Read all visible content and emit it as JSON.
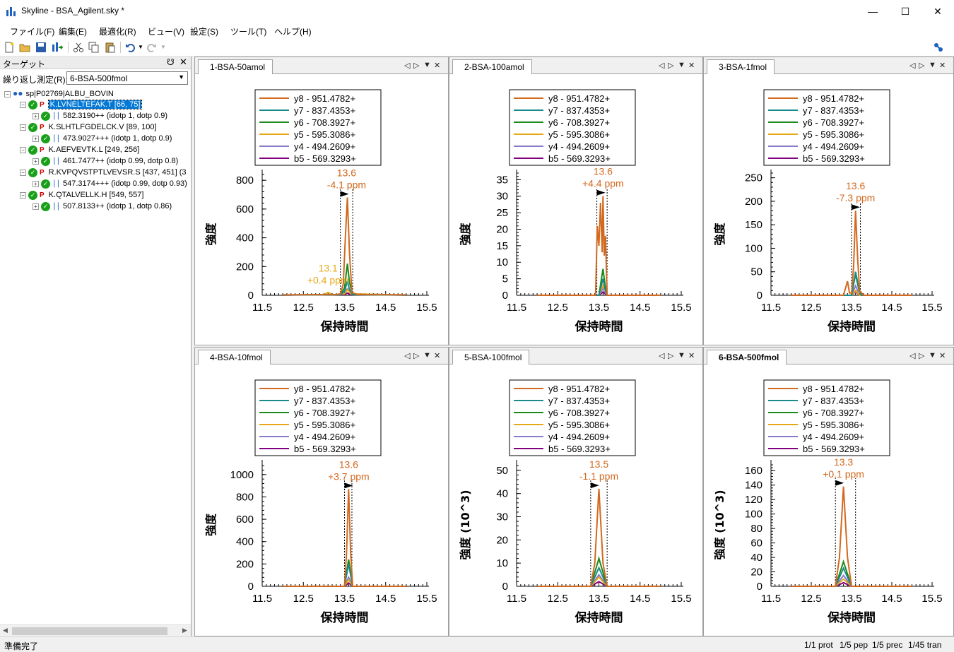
{
  "window": {
    "title": "Skyline - BSA_Agilent.sky *"
  },
  "menu": [
    "ファイル(F)",
    "編集(E)",
    "最適化(R)",
    "ビュー(V)",
    "設定(S)",
    "ツール(T)",
    "ヘルプ(H)"
  ],
  "toolbar_icons": [
    "new-file-icon",
    "open-folder-icon",
    "save-icon",
    "import-icon",
    "cut-icon",
    "copy-icon",
    "paste-icon",
    "undo-icon",
    "redo-icon"
  ],
  "targets": {
    "title": "ターゲット",
    "replicate_label": "繰り返し測定(R):",
    "replicate_value": "6-BSA-500fmol",
    "protein": "sp|P02769|ALBU_BOVIN",
    "peptides": [
      {
        "label": "K.LVNELTEFAK.T [66, 75]",
        "precursor": "582.3190++ (idotp 1, dotp 0.9)",
        "selected": true
      },
      {
        "label": "K.SLHTLFGDELCK.V [89, 100]",
        "precursor": "473.9027+++ (idotp 1, dotp 0.9)",
        "selected": false
      },
      {
        "label": "K.AEFVEVTK.L [249, 256]",
        "precursor": "461.7477++ (idotp 0.99, dotp 0.8)",
        "selected": false
      },
      {
        "label": "R.KVPQVSTPTLVEVSR.S [437, 451] (3",
        "precursor": "547.3174+++ (idotp 0.99, dotp 0.93)",
        "selected": false
      },
      {
        "label": "K.QTALVELLK.H [549, 557]",
        "precursor": "507.8133++ (idotp 1, dotp 0.86)",
        "selected": false
      }
    ]
  },
  "legend": [
    {
      "label": "y8 - 951.4782+",
      "color": "#d2691e"
    },
    {
      "label": "y7 - 837.4353+",
      "color": "#1a8a8a"
    },
    {
      "label": "y6 - 708.3927+",
      "color": "#1a8a1a"
    },
    {
      "label": "y5 - 595.3086+",
      "color": "#e6a817"
    },
    {
      "label": "y4 - 494.2609+",
      "color": "#8a7acc"
    },
    {
      "label": "b5 - 569.3293+",
      "color": "#800080"
    }
  ],
  "chart_data": [
    {
      "type": "line",
      "tab": "1-BSA-50amol",
      "active": false,
      "xlabel": "保持時間",
      "ylabel": "強度",
      "xlim": [
        11.5,
        15.5
      ],
      "ylim": [
        0,
        850
      ],
      "xticks": [
        11.5,
        12.5,
        13.5,
        14.5,
        15.5
      ],
      "yticks": [
        0,
        200,
        400,
        600,
        800
      ],
      "peak": {
        "rt": 13.55,
        "apex": 680,
        "boundary": [
          13.4,
          13.7
        ],
        "label": "13.6",
        "ppm": "-4.1 ppm"
      },
      "extra_label": {
        "rt": 13.1,
        "y": 165,
        "label": "13.1",
        "ppm": "+0.4 ppm"
      },
      "series": [
        {
          "name": "y8 - 951.4782+",
          "x": [
            12.0,
            13.3,
            13.4,
            13.47,
            13.52,
            13.57,
            13.62,
            13.68,
            13.8,
            15.0
          ],
          "y": [
            3,
            5,
            10,
            80,
            400,
            680,
            300,
            20,
            5,
            3
          ]
        },
        {
          "name": "y7 - 837.4353+",
          "x": [
            12.0,
            13.4,
            13.5,
            13.57,
            13.62,
            13.7,
            15.0
          ],
          "y": [
            2,
            5,
            25,
            100,
            40,
            5,
            2
          ]
        },
        {
          "name": "y6 - 708.3927+",
          "x": [
            12.0,
            13.4,
            13.5,
            13.57,
            13.62,
            13.7,
            15.0
          ],
          "y": [
            2,
            5,
            50,
            220,
            90,
            5,
            2
          ]
        },
        {
          "name": "y5 - 595.3086+",
          "x": [
            12.0,
            13.0,
            13.1,
            13.2,
            13.5,
            13.57,
            13.65,
            15.0
          ],
          "y": [
            2,
            4,
            20,
            4,
            10,
            40,
            10,
            2
          ]
        },
        {
          "name": "y4 - 494.2609+",
          "x": [
            12.0,
            13.4,
            13.5,
            13.57,
            13.65,
            15.0
          ],
          "y": [
            2,
            5,
            30,
            45,
            10,
            2
          ]
        },
        {
          "name": "b5 - 569.3293+",
          "x": [
            12.0,
            13.5,
            13.57,
            13.65,
            15.0
          ],
          "y": [
            1,
            5,
            15,
            5,
            1
          ]
        }
      ]
    },
    {
      "type": "line",
      "tab": "2-BSA-100amol",
      "active": false,
      "xlabel": "保持時間",
      "ylabel": "強度",
      "xlim": [
        11.5,
        15.5
      ],
      "ylim": [
        0,
        37
      ],
      "xticks": [
        11.5,
        12.5,
        13.5,
        14.5,
        15.5
      ],
      "yticks": [
        0,
        5,
        10,
        15,
        20,
        25,
        30,
        35
      ],
      "peak": {
        "rt": 13.6,
        "apex": 30,
        "boundary": [
          13.45,
          13.7
        ],
        "label": "13.6",
        "ppm": "+4.4 ppm"
      },
      "series": [
        {
          "name": "y8 - 951.4782+",
          "x": [
            12.0,
            13.42,
            13.46,
            13.5,
            13.54,
            13.58,
            13.6,
            13.63,
            13.66,
            13.7,
            14.0,
            15.0
          ],
          "y": [
            0,
            0,
            21,
            15,
            28,
            13,
            30,
            12,
            18,
            0,
            0,
            0
          ]
        },
        {
          "name": "y7 - 837.4353+",
          "x": [
            12.0,
            13.5,
            13.6,
            13.65,
            13.7,
            15.0
          ],
          "y": [
            0,
            0,
            5,
            2,
            0,
            0
          ]
        },
        {
          "name": "y6 - 708.3927+",
          "x": [
            12.0,
            13.5,
            13.6,
            13.65,
            13.7,
            15.0
          ],
          "y": [
            0,
            0,
            8,
            3,
            0,
            0
          ]
        },
        {
          "name": "y5 - 595.3086+",
          "x": [
            12.0,
            13.5,
            13.6,
            13.7,
            15.0
          ],
          "y": [
            0,
            0,
            3,
            0,
            0
          ]
        },
        {
          "name": "y4 - 494.2609+",
          "x": [
            12.0,
            13.5,
            13.6,
            13.7,
            15.0
          ],
          "y": [
            0,
            0,
            2,
            0,
            0
          ]
        },
        {
          "name": "b5 - 569.3293+",
          "x": [
            12.0,
            13.5,
            13.6,
            13.7,
            15.0
          ],
          "y": [
            0,
            0,
            1,
            0,
            0
          ]
        }
      ]
    },
    {
      "type": "line",
      "tab": "3-BSA-1fmol",
      "active": false,
      "xlabel": "保持時間",
      "ylabel": "強度",
      "xlim": [
        11.5,
        15.5
      ],
      "ylim": [
        0,
        260
      ],
      "xticks": [
        11.5,
        12.5,
        13.5,
        14.5,
        15.5
      ],
      "yticks": [
        0,
        50,
        100,
        150,
        200,
        250
      ],
      "peak": {
        "rt": 13.6,
        "apex": 180,
        "boundary": [
          13.5,
          13.72
        ],
        "label": "13.6",
        "ppm": "-7.3 ppm"
      },
      "series": [
        {
          "name": "y8 - 951.4782+",
          "x": [
            12.0,
            13.3,
            13.4,
            13.45,
            13.5,
            13.55,
            13.6,
            13.65,
            13.7,
            13.8,
            15.0
          ],
          "y": [
            0,
            0,
            30,
            5,
            5,
            60,
            180,
            80,
            10,
            0,
            0
          ]
        },
        {
          "name": "y7 - 837.4353+",
          "x": [
            12.0,
            13.5,
            13.6,
            13.68,
            13.75,
            15.0
          ],
          "y": [
            0,
            0,
            50,
            15,
            0,
            0
          ]
        },
        {
          "name": "y6 - 708.3927+",
          "x": [
            12.0,
            13.5,
            13.6,
            13.68,
            13.75,
            15.0
          ],
          "y": [
            0,
            0,
            45,
            12,
            0,
            0
          ]
        },
        {
          "name": "y5 - 595.3086+",
          "x": [
            12.0,
            13.5,
            13.6,
            13.7,
            15.0
          ],
          "y": [
            0,
            0,
            10,
            0,
            0
          ]
        },
        {
          "name": "y4 - 494.2609+",
          "x": [
            12.0,
            13.5,
            13.6,
            13.7,
            15.0
          ],
          "y": [
            0,
            0,
            20,
            0,
            0
          ]
        },
        {
          "name": "b5 - 569.3293+",
          "x": [
            12.0,
            13.5,
            13.6,
            13.7,
            15.0
          ],
          "y": [
            0,
            0,
            8,
            0,
            0
          ]
        }
      ]
    },
    {
      "type": "line",
      "tab": "4-BSA-10fmol",
      "active": false,
      "xlabel": "保持時間",
      "ylabel": "強度",
      "xlim": [
        11.5,
        15.5
      ],
      "ylim": [
        0,
        1100
      ],
      "xticks": [
        11.5,
        12.5,
        13.5,
        14.5,
        15.5
      ],
      "yticks": [
        0,
        200,
        400,
        600,
        800,
        1000
      ],
      "peak": {
        "rt": 13.6,
        "apex": 870,
        "boundary": [
          13.5,
          13.68
        ],
        "label": "13.6",
        "ppm": "+3.7 ppm"
      },
      "series": [
        {
          "name": "y8 - 951.4782+",
          "x": [
            12.0,
            13.5,
            13.55,
            13.6,
            13.65,
            13.7,
            15.0
          ],
          "y": [
            0,
            0,
            300,
            870,
            300,
            0,
            0
          ]
        },
        {
          "name": "y7 - 837.4353+",
          "x": [
            12.0,
            13.5,
            13.6,
            13.7,
            15.0
          ],
          "y": [
            0,
            0,
            200,
            0,
            0
          ]
        },
        {
          "name": "y6 - 708.3927+",
          "x": [
            12.0,
            13.5,
            13.6,
            13.7,
            15.0
          ],
          "y": [
            0,
            0,
            240,
            0,
            0
          ]
        },
        {
          "name": "y5 - 595.3086+",
          "x": [
            12.0,
            13.5,
            13.6,
            13.7,
            15.0
          ],
          "y": [
            0,
            0,
            60,
            0,
            0
          ]
        },
        {
          "name": "y4 - 494.2609+",
          "x": [
            12.0,
            13.5,
            13.6,
            13.7,
            15.0
          ],
          "y": [
            0,
            0,
            80,
            0,
            0
          ]
        },
        {
          "name": "b5 - 569.3293+",
          "x": [
            12.0,
            13.5,
            13.6,
            13.7,
            15.0
          ],
          "y": [
            0,
            0,
            30,
            0,
            0
          ]
        }
      ]
    },
    {
      "type": "line",
      "tab": "5-BSA-100fmol",
      "active": false,
      "xlabel": "保持時間",
      "ylabel": "強度 (10^3)",
      "xlim": [
        11.5,
        15.5
      ],
      "ylim": [
        0,
        53
      ],
      "xticks": [
        11.5,
        12.5,
        13.5,
        14.5,
        15.5
      ],
      "yticks": [
        0,
        10,
        20,
        30,
        40,
        50
      ],
      "peak": {
        "rt": 13.5,
        "apex": 42,
        "boundary": [
          13.3,
          13.7
        ],
        "label": "13.5",
        "ppm": "-1.1 ppm"
      },
      "series": [
        {
          "name": "y8 - 951.4782+",
          "x": [
            12.0,
            13.3,
            13.4,
            13.5,
            13.6,
            13.7,
            15.0
          ],
          "y": [
            0,
            0,
            10,
            42,
            10,
            0,
            0
          ]
        },
        {
          "name": "y7 - 837.4353+",
          "x": [
            12.0,
            13.3,
            13.5,
            13.7,
            15.0
          ],
          "y": [
            0,
            0,
            8,
            0,
            0
          ]
        },
        {
          "name": "y6 - 708.3927+",
          "x": [
            12.0,
            13.3,
            13.5,
            13.7,
            15.0
          ],
          "y": [
            0,
            0,
            12,
            0,
            0
          ]
        },
        {
          "name": "y5 - 595.3086+",
          "x": [
            12.0,
            13.3,
            13.5,
            13.7,
            15.0
          ],
          "y": [
            0,
            0,
            4,
            0,
            0
          ]
        },
        {
          "name": "y4 - 494.2609+",
          "x": [
            12.0,
            13.3,
            13.5,
            13.7,
            15.0
          ],
          "y": [
            0,
            0,
            5,
            0,
            0
          ]
        },
        {
          "name": "b5 - 569.3293+",
          "x": [
            12.0,
            13.3,
            13.5,
            13.7,
            15.0
          ],
          "y": [
            0,
            0,
            2,
            0,
            0
          ]
        }
      ]
    },
    {
      "type": "line",
      "tab": "6-BSA-500fmol",
      "active": true,
      "xlabel": "保持時間",
      "ylabel": "強度 (10^3)",
      "xlim": [
        11.5,
        15.5
      ],
      "ylim": [
        0,
        170
      ],
      "xticks": [
        11.5,
        12.5,
        13.5,
        14.5,
        15.5
      ],
      "yticks": [
        0,
        20,
        40,
        60,
        80,
        100,
        120,
        140,
        160
      ],
      "peak": {
        "rt": 13.3,
        "apex": 138,
        "boundary": [
          13.1,
          13.6
        ],
        "label": "13.3",
        "ppm": "+0.1 ppm"
      },
      "series": [
        {
          "name": "y8 - 951.4782+",
          "x": [
            12.0,
            13.1,
            13.2,
            13.3,
            13.4,
            13.5,
            15.0
          ],
          "y": [
            0,
            0,
            40,
            138,
            40,
            0,
            0
          ]
        },
        {
          "name": "y7 - 837.4353+",
          "x": [
            12.0,
            13.1,
            13.3,
            13.5,
            15.0
          ],
          "y": [
            0,
            0,
            25,
            0,
            0
          ]
        },
        {
          "name": "y6 - 708.3927+",
          "x": [
            12.0,
            13.1,
            13.3,
            13.5,
            15.0
          ],
          "y": [
            0,
            0,
            34,
            0,
            0
          ]
        },
        {
          "name": "y5 - 595.3086+",
          "x": [
            12.0,
            13.1,
            13.3,
            13.5,
            15.0
          ],
          "y": [
            0,
            0,
            10,
            0,
            0
          ]
        },
        {
          "name": "y4 - 494.2609+",
          "x": [
            12.0,
            13.1,
            13.3,
            13.5,
            15.0
          ],
          "y": [
            0,
            0,
            15,
            0,
            0
          ]
        },
        {
          "name": "b5 - 569.3293+",
          "x": [
            12.0,
            13.1,
            13.3,
            13.5,
            15.0
          ],
          "y": [
            0,
            0,
            5,
            0,
            0
          ]
        }
      ]
    }
  ],
  "status": {
    "ready": "準備完了",
    "prot": "1/1 prot",
    "pep": "1/5 pep",
    "prec": "1/5 prec",
    "tran": "1/45 tran"
  }
}
